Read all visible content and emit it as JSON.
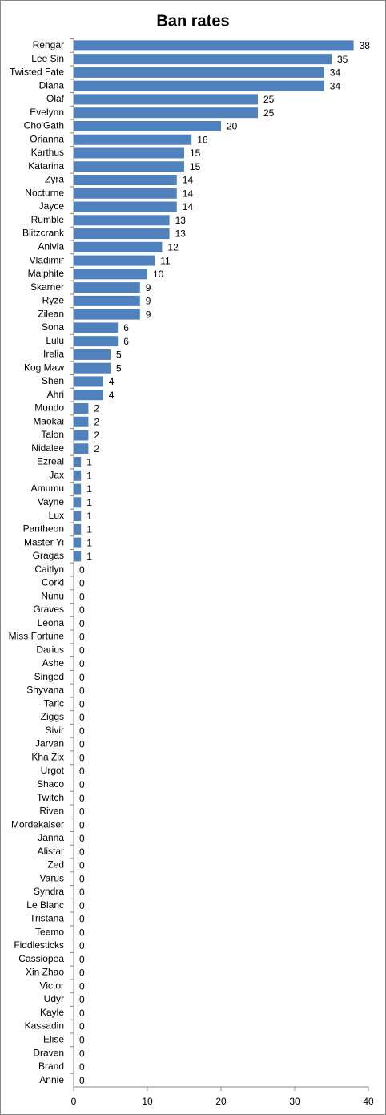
{
  "chart_data": {
    "type": "bar",
    "orientation": "horizontal",
    "title": "Ban rates",
    "categories": [
      "Rengar",
      "Lee Sin",
      "Twisted Fate",
      "Diana",
      "Olaf",
      "Evelynn",
      "Cho'Gath",
      "Orianna",
      "Karthus",
      "Katarina",
      "Zyra",
      "Nocturne",
      "Jayce",
      "Rumble",
      "Blitzcrank",
      "Anivia",
      "Vladimir",
      "Malphite",
      "Skarner",
      "Ryze",
      "Zilean",
      "Sona",
      "Lulu",
      "Irelia",
      "Kog Maw",
      "Shen",
      "Ahri",
      "Mundo",
      "Maokai",
      "Talon",
      "Nidalee",
      "Ezreal",
      "Jax",
      "Amumu",
      "Vayne",
      "Lux",
      "Pantheon",
      "Master Yi",
      "Gragas",
      "Caitlyn",
      "Corki",
      "Nunu",
      "Graves",
      "Leona",
      "Miss Fortune",
      "Darius",
      "Ashe",
      "Singed",
      "Shyvana",
      "Taric",
      "Ziggs",
      "Sivir",
      "Jarvan",
      "Kha Zix",
      "Urgot",
      "Shaco",
      "Twitch",
      "Riven",
      "Mordekaiser",
      "Janna",
      "Alistar",
      "Zed",
      "Varus",
      "Syndra",
      "Le Blanc",
      "Tristana",
      "Teemo",
      "Fiddlesticks",
      "Cassiopea",
      "Xin Zhao",
      "Victor",
      "Udyr",
      "Kayle",
      "Kassadin",
      "Elise",
      "Draven",
      "Brand",
      "Annie"
    ],
    "values": [
      38,
      35,
      34,
      34,
      25,
      25,
      20,
      16,
      15,
      15,
      14,
      14,
      14,
      13,
      13,
      12,
      11,
      10,
      9,
      9,
      9,
      6,
      6,
      5,
      5,
      4,
      4,
      2,
      2,
      2,
      2,
      1,
      1,
      1,
      1,
      1,
      1,
      1,
      1,
      0,
      0,
      0,
      0,
      0,
      0,
      0,
      0,
      0,
      0,
      0,
      0,
      0,
      0,
      0,
      0,
      0,
      0,
      0,
      0,
      0,
      0,
      0,
      0,
      0,
      0,
      0,
      0,
      0,
      0,
      0,
      0,
      0,
      0,
      0,
      0,
      0,
      0,
      0
    ],
    "color": "#4f81bd",
    "xlim": [
      0,
      40
    ],
    "xticks": [
      0,
      10,
      20,
      30,
      40
    ]
  }
}
